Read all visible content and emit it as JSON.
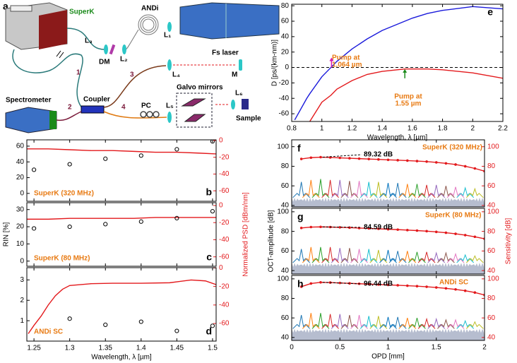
{
  "diagram": {
    "panel": "a",
    "superk": "SuperK",
    "andi": "ANDi",
    "l1": "L₁",
    "fs_laser": "Fs laser",
    "l3": "L₃",
    "dm": "DM",
    "l2": "L₂",
    "l4": "L₄",
    "m": "M",
    "ports": [
      "1",
      "2",
      "3",
      "4"
    ],
    "coupler": "Coupler",
    "spectrometer": "Spectrometer",
    "pc": "PC",
    "l5": "L₅",
    "galvo": "Galvo mirrors",
    "l6": "L₆",
    "sample": "Sample"
  },
  "chart_data": [
    {
      "type": "combo",
      "panel": "e",
      "xlabel": "Wavelength, λ [µm]",
      "ylabel": "D [ps/(km-nm)]",
      "x": [
        0.82,
        0.9,
        0.92,
        1.0,
        1.06,
        1.1,
        1.2,
        1.3,
        1.4,
        1.55,
        1.6,
        1.7,
        1.8,
        2.0,
        2.2
      ],
      "series": [
        {
          "type": "line",
          "color": "#1a1adb",
          "values": [
            -68,
            -40,
            -34,
            -12,
            0,
            8,
            24,
            37,
            48,
            60,
            64,
            70,
            74,
            79,
            76
          ]
        },
        {
          "type": "line",
          "color": "#e3191c",
          "values": [
            null,
            null,
            -70,
            -45,
            -36,
            -28,
            -17,
            -9,
            -5,
            -2,
            -2,
            -2,
            -3,
            -7,
            -14
          ]
        }
      ],
      "xlim": [
        0.8,
        2.2
      ],
      "xticks": [
        0.8,
        1,
        1.2,
        1.4,
        1.6,
        1.8,
        2,
        2.2
      ],
      "ylim": [
        -70,
        82
      ],
      "yticks": [
        -60,
        -40,
        -20,
        0,
        20,
        40,
        60,
        80
      ],
      "reference_line": 0,
      "annotations": [
        {
          "text": [
            "Pump at",
            "1.064 µm"
          ],
          "color": "#e87a12"
        },
        {
          "text": [
            "Pump at",
            "1.55 µm"
          ],
          "color": "#e87a12"
        }
      ]
    },
    {
      "type": "combo",
      "panel": "b",
      "xlim": [
        1.24,
        1.505
      ],
      "xticks": [
        1.25,
        1.3,
        1.35,
        1.4,
        1.45,
        1.5
      ],
      "xtick_labels": false,
      "ylim": [
        -10,
        68
      ],
      "yticks": [
        0,
        20,
        40,
        60
      ],
      "y2lim": [
        -72.5,
        0.8
      ],
      "y2ticks": [
        0,
        -20,
        -40,
        -60
      ],
      "y2color": "#e3191c",
      "series": [
        {
          "type": "line",
          "axis": "y2",
          "color": "#e3191c",
          "x": [
            1.24,
            1.27,
            1.3,
            1.33,
            1.36,
            1.39,
            1.42,
            1.45,
            1.48,
            1.505
          ],
          "values": [
            -10,
            -10,
            -11,
            -12,
            -12,
            -13,
            -14,
            -14,
            -15,
            -16
          ]
        },
        {
          "type": "scatter",
          "color": "#000000",
          "x": [
            1.25,
            1.3,
            1.35,
            1.4,
            1.45,
            1.5
          ],
          "values": [
            30,
            37,
            44,
            48,
            56,
            66
          ]
        }
      ],
      "annotations": [
        {
          "text": [
            "SuperK (320 MHz)"
          ],
          "color": "#e87a12"
        }
      ]
    },
    {
      "type": "combo",
      "panel": "c",
      "ylabel": "RIN [%]",
      "y2label": "Normalized PSD [dBm/nm]",
      "xlim": [
        1.24,
        1.505
      ],
      "xticks": [
        1.25,
        1.3,
        1.35,
        1.4,
        1.45,
        1.5
      ],
      "xtick_labels": false,
      "ylim": [
        -3,
        34
      ],
      "yticks": [
        0,
        10,
        20,
        30
      ],
      "y2lim": [
        -71,
        3.3
      ],
      "y2ticks": [
        0,
        -20,
        -40,
        -60
      ],
      "y2color": "#e3191c",
      "series": [
        {
          "type": "line",
          "axis": "y2",
          "color": "#e3191c",
          "x": [
            1.24,
            1.27,
            1.3,
            1.33,
            1.36,
            1.39,
            1.42,
            1.45,
            1.48,
            1.505
          ],
          "values": [
            -16,
            -16,
            -15,
            -15,
            -15,
            -15,
            -14,
            -14,
            -14,
            -14
          ]
        },
        {
          "type": "scatter",
          "color": "#000000",
          "x": [
            1.25,
            1.3,
            1.35,
            1.4,
            1.45,
            1.5
          ],
          "values": [
            19,
            20,
            21.5,
            23,
            25,
            29
          ]
        }
      ],
      "annotations": [
        {
          "text": [
            "SuperK (80 MHz)"
          ],
          "color": "#e87a12"
        }
      ]
    },
    {
      "type": "combo",
      "panel": "d",
      "xlabel": "Wavelength, λ [µm]",
      "xlim": [
        1.24,
        1.505
      ],
      "xticks": [
        1.25,
        1.3,
        1.35,
        1.4,
        1.45,
        1.5
      ],
      "ylim": [
        0,
        3.6
      ],
      "yticks": [
        1,
        2,
        3
      ],
      "y2lim": [
        -79,
        0.3
      ],
      "y2ticks": [
        0,
        -20,
        -40,
        -60
      ],
      "y2color": "#e3191c",
      "series": [
        {
          "type": "line",
          "axis": "y2",
          "color": "#e3191c",
          "x": [
            1.242,
            1.25,
            1.26,
            1.27,
            1.28,
            1.29,
            1.3,
            1.33,
            1.36,
            1.4,
            1.44,
            1.47,
            1.49,
            1.505
          ],
          "values": [
            -71,
            -62,
            -52,
            -40,
            -30,
            -23,
            -19,
            -17,
            -16.5,
            -16.5,
            -16,
            -13,
            -14,
            -18
          ]
        },
        {
          "type": "scatter",
          "color": "#000000",
          "x": [
            1.3,
            1.35,
            1.4,
            1.45,
            1.5
          ],
          "values": [
            1.1,
            0.8,
            0.95,
            0.5,
            0.75
          ]
        }
      ],
      "annotations": [
        {
          "text": [
            "ANDi SC"
          ],
          "color": "#e87a12"
        }
      ]
    },
    {
      "type": "combo",
      "panel": "f",
      "xlim": [
        0,
        2
      ],
      "xticks": [
        0,
        0.5,
        1,
        1.5,
        2
      ],
      "xtick_labels": false,
      "ylim": [
        38.5,
        107
      ],
      "yticks": [
        40,
        60,
        80,
        100
      ],
      "y2lim": [
        38.5,
        107
      ],
      "y2ticks": [
        40,
        60,
        80,
        100
      ],
      "y2color": "#e3191c",
      "noise_floor": 48,
      "series": [
        {
          "type": "peaks",
          "colors": [
            "#1f77b4",
            "#ff7f0e",
            "#2ca02c",
            "#d62728",
            "#9467bd",
            "#8c564b",
            "#e377c2",
            "#17becf",
            "#bcbd22",
            "#0072bd"
          ],
          "x": [
            0.1,
            0.2,
            0.3,
            0.4,
            0.5,
            0.6,
            0.7,
            0.8,
            0.9,
            1.0,
            1.1,
            1.2,
            1.3,
            1.4,
            1.5,
            1.6,
            1.7,
            1.8,
            1.9
          ],
          "values": [
            64,
            66,
            67,
            66,
            66,
            65,
            65,
            64,
            64,
            63,
            63,
            62,
            62,
            61,
            61,
            60,
            59,
            58,
            57
          ]
        },
        {
          "type": "line_markers",
          "axis": "y2",
          "color": "#e3191c",
          "x": [
            0.1,
            0.2,
            0.3,
            0.4,
            0.5,
            0.6,
            0.7,
            0.8,
            0.9,
            1.0,
            1.1,
            1.2,
            1.3,
            1.4,
            1.5,
            1.6,
            1.7,
            1.8,
            1.9,
            2.0
          ],
          "values": [
            87.5,
            88.8,
            89.32,
            89,
            88.6,
            88.2,
            87.8,
            87.4,
            87,
            86.6,
            86.2,
            85.8,
            85.3,
            84.8,
            84,
            83,
            81.8,
            80,
            77.8,
            75
          ]
        }
      ],
      "annotations": [
        {
          "text": [
            "SuperK (320 MHz)"
          ],
          "color": "#e87a12"
        },
        {
          "text": [
            "89.32 dB"
          ],
          "color": "#000000"
        }
      ]
    },
    {
      "type": "combo",
      "panel": "g",
      "ylabel": "OCT-amplitude [dB]",
      "y2label": "Sensitivity [dB]",
      "xlim": [
        0,
        2
      ],
      "xticks": [
        0,
        0.5,
        1,
        1.5,
        2
      ],
      "xtick_labels": false,
      "ylim": [
        36.5,
        103.5
      ],
      "yticks": [
        40,
        60,
        80,
        100
      ],
      "y2lim": [
        36.5,
        103.5
      ],
      "y2ticks": [
        40,
        60,
        80,
        100
      ],
      "y2color": "#e3191c",
      "noise_floor": 48,
      "series": [
        {
          "type": "peaks",
          "colors": [
            "#1f77b4",
            "#ff7f0e",
            "#2ca02c",
            "#d62728",
            "#9467bd",
            "#8c564b",
            "#e377c2",
            "#17becf",
            "#bcbd22",
            "#0072bd"
          ],
          "x": [
            0.1,
            0.2,
            0.3,
            0.4,
            0.5,
            0.6,
            0.7,
            0.8,
            0.9,
            1.0,
            1.1,
            1.2,
            1.3,
            1.4,
            1.5,
            1.6,
            1.7,
            1.8,
            1.9
          ],
          "values": [
            62,
            64,
            64,
            64,
            63,
            63,
            62,
            62,
            61,
            61,
            60,
            60,
            59,
            59,
            58,
            58,
            57,
            56,
            55
          ]
        },
        {
          "type": "line_markers",
          "axis": "y2",
          "color": "#e3191c",
          "x": [
            0.1,
            0.2,
            0.3,
            0.4,
            0.5,
            0.6,
            0.7,
            0.8,
            0.9,
            1.0,
            1.1,
            1.2,
            1.3,
            1.4,
            1.5,
            1.6,
            1.7,
            1.8,
            1.9,
            2.0
          ],
          "values": [
            83.5,
            84.4,
            84.59,
            84.4,
            84.1,
            83.8,
            83.4,
            83,
            82.6,
            82.2,
            81.8,
            81.3,
            80.8,
            80.2,
            79.5,
            78.6,
            77.5,
            76.2,
            74.5,
            72.5
          ]
        }
      ],
      "annotations": [
        {
          "text": [
            "SuperK (80 MHz)"
          ],
          "color": "#e87a12"
        },
        {
          "text": [
            "84.59 dB"
          ],
          "color": "#000000"
        }
      ]
    },
    {
      "type": "combo",
      "panel": "h",
      "xlabel": "OPD [mm]",
      "xlim": [
        0,
        2
      ],
      "xticks": [
        0,
        0.5,
        1,
        1.5,
        2
      ],
      "ylim": [
        37,
        103.5
      ],
      "yticks": [
        40,
        60,
        80,
        100
      ],
      "y2lim": [
        37,
        103.5
      ],
      "y2ticks": [
        40,
        60,
        80,
        100
      ],
      "y2color": "#e3191c",
      "noise_floor": 49,
      "series": [
        {
          "type": "peaks",
          "colors": [
            "#1f77b4",
            "#ff7f0e",
            "#2ca02c",
            "#d62728",
            "#9467bd",
            "#8c564b",
            "#e377c2",
            "#17becf",
            "#bcbd22",
            "#0072bd"
          ],
          "x": [
            0.1,
            0.2,
            0.3,
            0.4,
            0.5,
            0.6,
            0.7,
            0.8,
            0.9,
            1.0,
            1.1,
            1.2,
            1.3,
            1.4,
            1.5,
            1.6,
            1.7,
            1.8,
            1.9
          ],
          "values": [
            63,
            65,
            65,
            64,
            64,
            63,
            63,
            62,
            62,
            61,
            61,
            60,
            60,
            59,
            59,
            58,
            58,
            57,
            56
          ]
        },
        {
          "type": "line_markers",
          "axis": "y2",
          "color": "#e3191c",
          "x": [
            0.1,
            0.2,
            0.3,
            0.4,
            0.5,
            0.6,
            0.7,
            0.8,
            0.9,
            1.0,
            1.1,
            1.2,
            1.3,
            1.4,
            1.5,
            1.6,
            1.7,
            1.8,
            1.9,
            2.0
          ],
          "values": [
            92,
            95.2,
            96.44,
            96.2,
            95.8,
            95.4,
            95,
            94.6,
            94.2,
            93.8,
            93.4,
            93,
            92.5,
            91.9,
            91.2,
            90.3,
            89.2,
            87.8,
            86,
            83.5
          ]
        }
      ],
      "annotations": [
        {
          "text": [
            "ANDi SC"
          ],
          "color": "#e87a12"
        },
        {
          "text": [
            "96.44 dB"
          ],
          "color": "#000000"
        }
      ]
    }
  ]
}
